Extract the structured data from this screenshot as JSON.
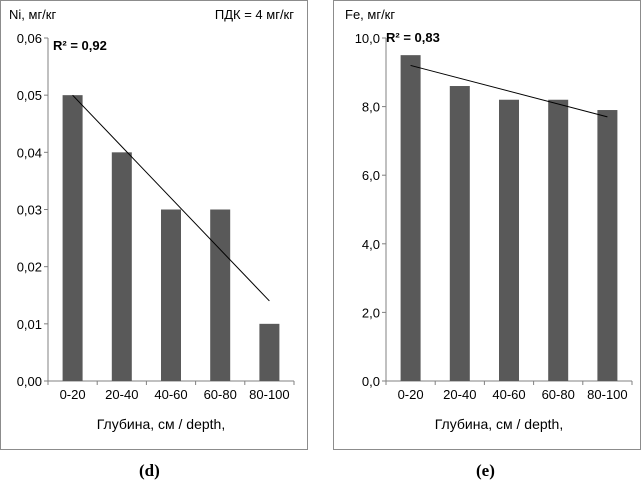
{
  "chart_data": [
    {
      "type": "bar",
      "ylabel": "Ni, мг/кг",
      "xlabel": "Глубина, см / depth,",
      "annotation": "ПДК = 4 мг/кг",
      "r2": "R² = 0,92",
      "caption": "(d)",
      "categories": [
        "0-20",
        "20-40",
        "40-60",
        "60-80",
        "80-100"
      ],
      "values": [
        0.05,
        0.04,
        0.03,
        0.03,
        0.01
      ],
      "trendline": {
        "type": "linear",
        "start": 0.05,
        "end": 0.014
      },
      "ylim": [
        0,
        0.06
      ],
      "yticks": [
        0,
        0.01,
        0.02,
        0.03,
        0.04,
        0.05,
        0.06
      ],
      "ytick_labels": [
        "0,00",
        "0,01",
        "0,02",
        "0,03",
        "0,04",
        "0,05",
        "0,06"
      ],
      "bar_color": "#595959"
    },
    {
      "type": "bar",
      "ylabel": "Fe, мг/кг",
      "xlabel": "Глубина, см / depth,",
      "r2": "R² = 0,83",
      "caption": "(e)",
      "categories": [
        "0-20",
        "20-40",
        "40-60",
        "60-80",
        "80-100"
      ],
      "values": [
        9.5,
        8.6,
        8.2,
        8.2,
        7.9
      ],
      "trendline": {
        "type": "linear",
        "start": 9.2,
        "end": 7.7
      },
      "ylim": [
        0,
        10
      ],
      "yticks": [
        0,
        2,
        4,
        6,
        8,
        10
      ],
      "ytick_labels": [
        "0,0",
        "2,0",
        "4,0",
        "6,0",
        "8,0",
        "10,0"
      ],
      "bar_color": "#595959"
    }
  ]
}
